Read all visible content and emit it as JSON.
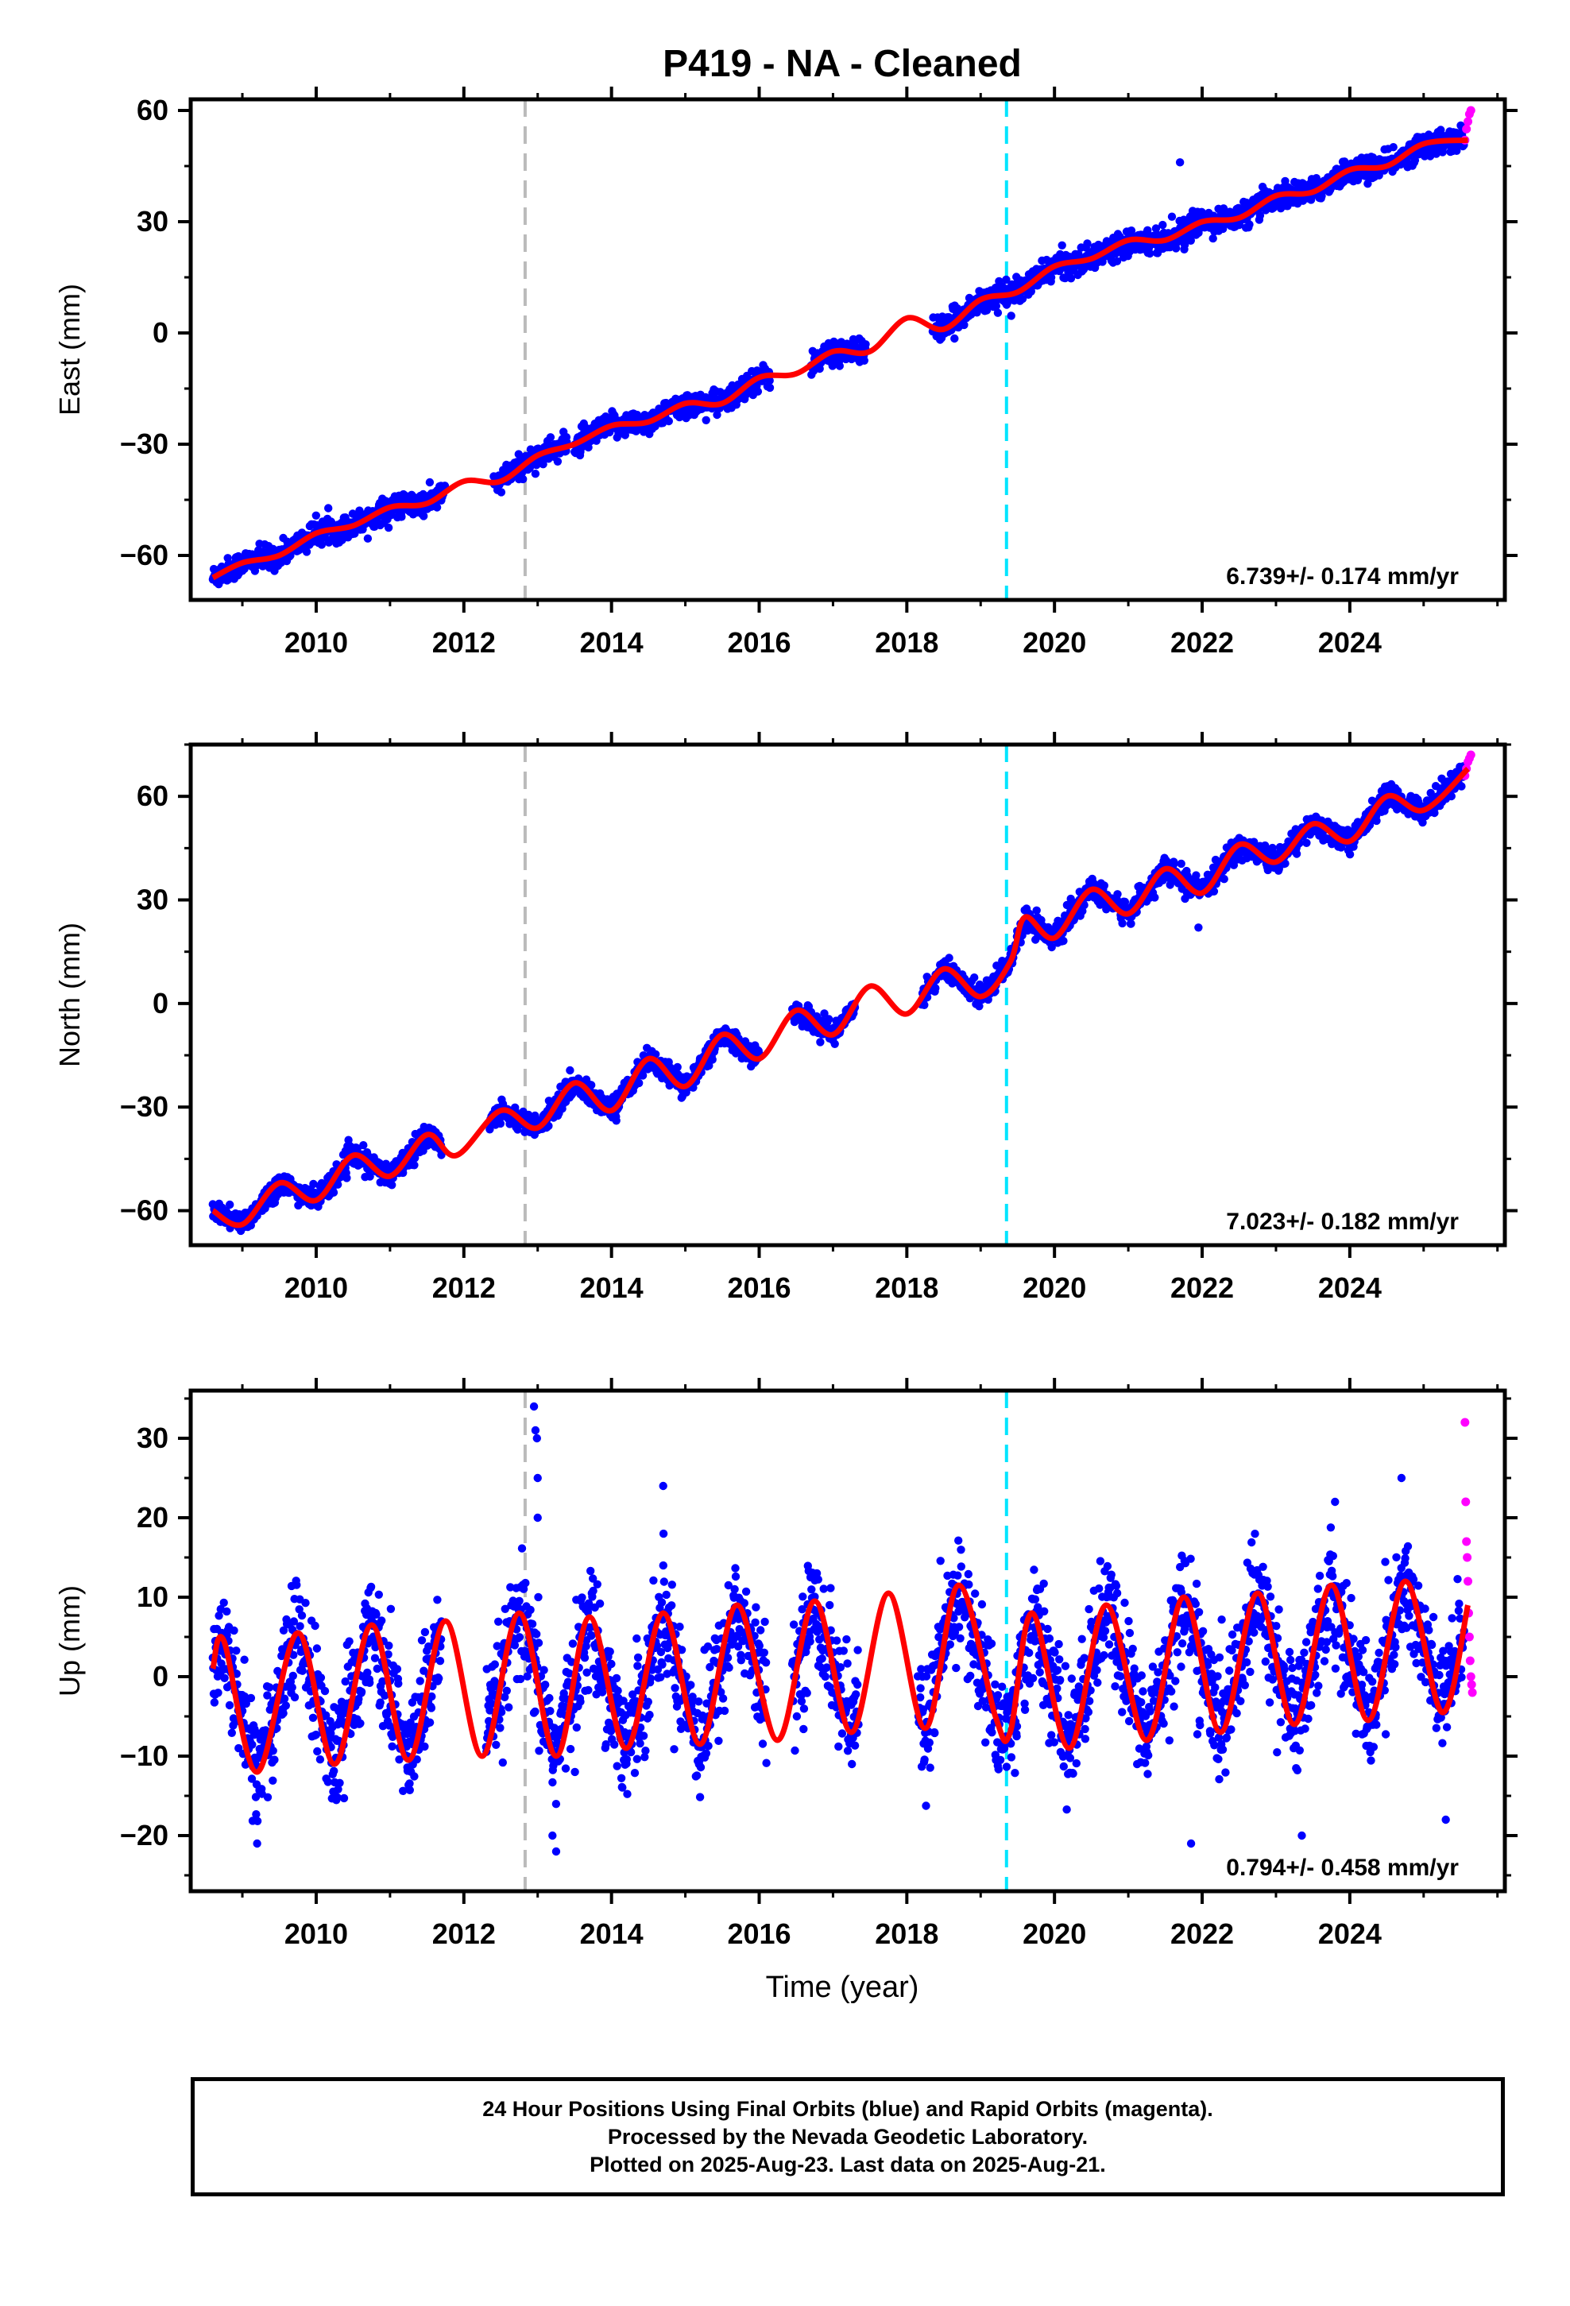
{
  "title": "P419  - NA - Cleaned",
  "xlabel": "Time (year)",
  "footer": {
    "lines": [
      "24 Hour Positions Using Final Orbits (blue) and Rapid Orbits (magenta).",
      "Processed by the Nevada Geodetic Laboratory.",
      "Plotted on 2025-Aug-23. Last data on 2025-Aug-21."
    ]
  },
  "colors": {
    "final_orbits": "#0000ff",
    "rapid_orbits": "#ff00ff",
    "model": "#ff0000",
    "gray_line": "#bbbbbb",
    "cyan_line": "#00e5ff"
  },
  "chart_data": [
    {
      "type": "scatter",
      "ylabel": "East (mm)",
      "xlim": [
        2008.3,
        2026.1
      ],
      "ylim": [
        -72,
        63
      ],
      "xticks": [
        2010,
        2012,
        2014,
        2016,
        2018,
        2020,
        2022,
        2024
      ],
      "yticks": [
        -60,
        -30,
        0,
        30,
        60
      ],
      "vlines": [
        {
          "x": 2012.83,
          "style": "gray"
        },
        {
          "x": 2019.35,
          "style": "cyan"
        }
      ],
      "velocity_label": "6.739+/- 0.174 mm/yr",
      "model": {
        "x": [
          2008.6,
          2009.0,
          2009.5,
          2010.0,
          2010.5,
          2011.0,
          2011.5,
          2012.0,
          2012.5,
          2013.0,
          2013.5,
          2014.0,
          2014.5,
          2015.0,
          2015.5,
          2016.0,
          2016.5,
          2017.0,
          2017.5,
          2018.0,
          2018.5,
          2019.0,
          2019.5,
          2020.0,
          2020.5,
          2021.0,
          2021.5,
          2022.0,
          2022.5,
          2023.0,
          2023.5,
          2024.0,
          2024.5,
          2025.0,
          2025.6
        ],
        "y": [
          -66,
          -62,
          -60,
          -54,
          -52,
          -47,
          -46,
          -40,
          -40,
          -33,
          -30,
          -25,
          -24,
          -19,
          -19,
          -12,
          -11,
          -5,
          -5,
          4,
          1,
          9,
          11,
          18,
          20,
          25,
          25,
          30,
          31,
          37,
          38,
          44,
          45,
          51,
          52
        ]
      },
      "final_orbits": {
        "segments": [
          [
            2008.6,
            2011.75
          ],
          [
            2012.4,
            2013.4
          ],
          [
            2013.5,
            2016.15
          ],
          [
            2016.7,
            2017.45
          ],
          [
            2018.35,
            2025.55
          ]
        ],
        "noise_mm": 1.6
      },
      "rapid_orbits": {
        "x": [
          2025.56,
          2025.58,
          2025.6,
          2025.62,
          2025.64
        ],
        "y": [
          52,
          55,
          57,
          59,
          60
        ]
      },
      "outliers": [
        {
          "x": 2021.7,
          "y": 46
        }
      ]
    },
    {
      "type": "scatter",
      "ylabel": "North (mm)",
      "xlim": [
        2008.3,
        2026.1
      ],
      "ylim": [
        -70,
        75
      ],
      "xticks": [
        2010,
        2012,
        2014,
        2016,
        2018,
        2020,
        2022,
        2024
      ],
      "yticks": [
        -60,
        -30,
        0,
        30,
        60
      ],
      "vlines": [
        {
          "x": 2012.83,
          "style": "gray"
        },
        {
          "x": 2019.35,
          "style": "cyan"
        }
      ],
      "velocity_label": "7.023+/- 0.182 mm/yr",
      "model": {
        "x": [
          2008.6,
          2009.0,
          2009.5,
          2010.0,
          2010.5,
          2011.0,
          2011.5,
          2011.9,
          2012.5,
          2013.0,
          2013.5,
          2014.0,
          2014.5,
          2015.0,
          2015.5,
          2016.0,
          2016.5,
          2017.0,
          2017.5,
          2018.0,
          2018.5,
          2019.0,
          2019.4,
          2019.6,
          2020.0,
          2020.5,
          2021.0,
          2021.5,
          2022.0,
          2022.5,
          2023.0,
          2023.5,
          2024.0,
          2024.5,
          2025.0,
          2025.6
        ],
        "y": [
          -60,
          -64,
          -52,
          -57,
          -44,
          -50,
          -38,
          -44,
          -31,
          -36,
          -23,
          -31,
          -16,
          -24,
          -9,
          -16,
          -2,
          -9,
          5,
          -3,
          10,
          2,
          12,
          25,
          19,
          33,
          26,
          39,
          32,
          46,
          41,
          52,
          47,
          60,
          56,
          68
        ]
      },
      "final_orbits": {
        "segments": [
          [
            2008.6,
            2011.7
          ],
          [
            2012.35,
            2016.0
          ],
          [
            2016.45,
            2017.3
          ],
          [
            2018.2,
            2025.55
          ]
        ],
        "noise_mm": 1.6
      },
      "rapid_orbits": {
        "x": [
          2025.56,
          2025.58,
          2025.6,
          2025.62,
          2025.64
        ],
        "y": [
          66,
          68,
          70,
          71,
          72
        ]
      },
      "outliers": [
        {
          "x": 2021.95,
          "y": 22
        }
      ]
    },
    {
      "type": "scatter",
      "ylabel": "Up (mm)",
      "xlim": [
        2008.3,
        2026.1
      ],
      "ylim": [
        -27,
        36
      ],
      "xticks": [
        2010,
        2012,
        2014,
        2016,
        2018,
        2020,
        2022,
        2024
      ],
      "yticks": [
        -20,
        -10,
        0,
        10,
        20,
        30
      ],
      "vlines": [
        {
          "x": 2012.83,
          "style": "gray"
        },
        {
          "x": 2019.35,
          "style": "cyan"
        }
      ],
      "velocity_label": "0.794+/- 0.458 mm/yr",
      "model": {
        "x": [
          2008.6,
          2008.75,
          2009.2,
          2009.75,
          2010.25,
          2010.75,
          2011.25,
          2011.75,
          2012.25,
          2012.75,
          2013.25,
          2013.7,
          2014.2,
          2014.7,
          2015.2,
          2015.7,
          2016.25,
          2016.75,
          2017.25,
          2017.75,
          2018.25,
          2018.7,
          2019.2,
          2019.4,
          2019.7,
          2020.2,
          2020.7,
          2021.25,
          2021.75,
          2022.25,
          2022.75,
          2023.25,
          2023.75,
          2024.25,
          2024.75,
          2025.25,
          2025.6
        ],
        "y": [
          1,
          4.5,
          -12,
          5.5,
          -11,
          6.5,
          -10.5,
          7,
          -10,
          8,
          -10,
          7.5,
          -9,
          8,
          -8.5,
          9,
          -8,
          9.5,
          -7,
          10.5,
          -6.5,
          11.5,
          -5,
          -7,
          8,
          -9,
          9,
          -8,
          10,
          -7,
          10.5,
          -6,
          11.5,
          -5.5,
          12,
          -4.5,
          9
        ]
      },
      "final_orbits": {
        "segments": [
          [
            2008.6,
            2011.7
          ],
          [
            2012.3,
            2016.1
          ],
          [
            2016.45,
            2017.35
          ],
          [
            2018.15,
            2025.55
          ]
        ],
        "noise_mm": 3.6
      },
      "rapid_orbits": {
        "x": [
          2025.56,
          2025.57,
          2025.58,
          2025.59,
          2025.6,
          2025.61,
          2025.62,
          2025.63,
          2025.64,
          2025.65,
          2025.66
        ],
        "y": [
          32,
          22,
          17,
          15,
          12,
          8,
          5,
          2,
          0,
          -1,
          -2
        ]
      },
      "outliers": [
        {
          "x": 2012.95,
          "y": 34
        },
        {
          "x": 2012.97,
          "y": 31
        },
        {
          "x": 2012.99,
          "y": 30
        },
        {
          "x": 2013.0,
          "y": 25
        },
        {
          "x": 2013.0,
          "y": 20
        },
        {
          "x": 2013.2,
          "y": -20
        },
        {
          "x": 2013.25,
          "y": -22
        },
        {
          "x": 2014.7,
          "y": 24
        },
        {
          "x": 2009.2,
          "y": -21
        },
        {
          "x": 2021.85,
          "y": -21
        },
        {
          "x": 2023.35,
          "y": -20
        },
        {
          "x": 2025.3,
          "y": -18
        },
        {
          "x": 2023.8,
          "y": 22
        },
        {
          "x": 2024.7,
          "y": 25
        }
      ]
    }
  ]
}
